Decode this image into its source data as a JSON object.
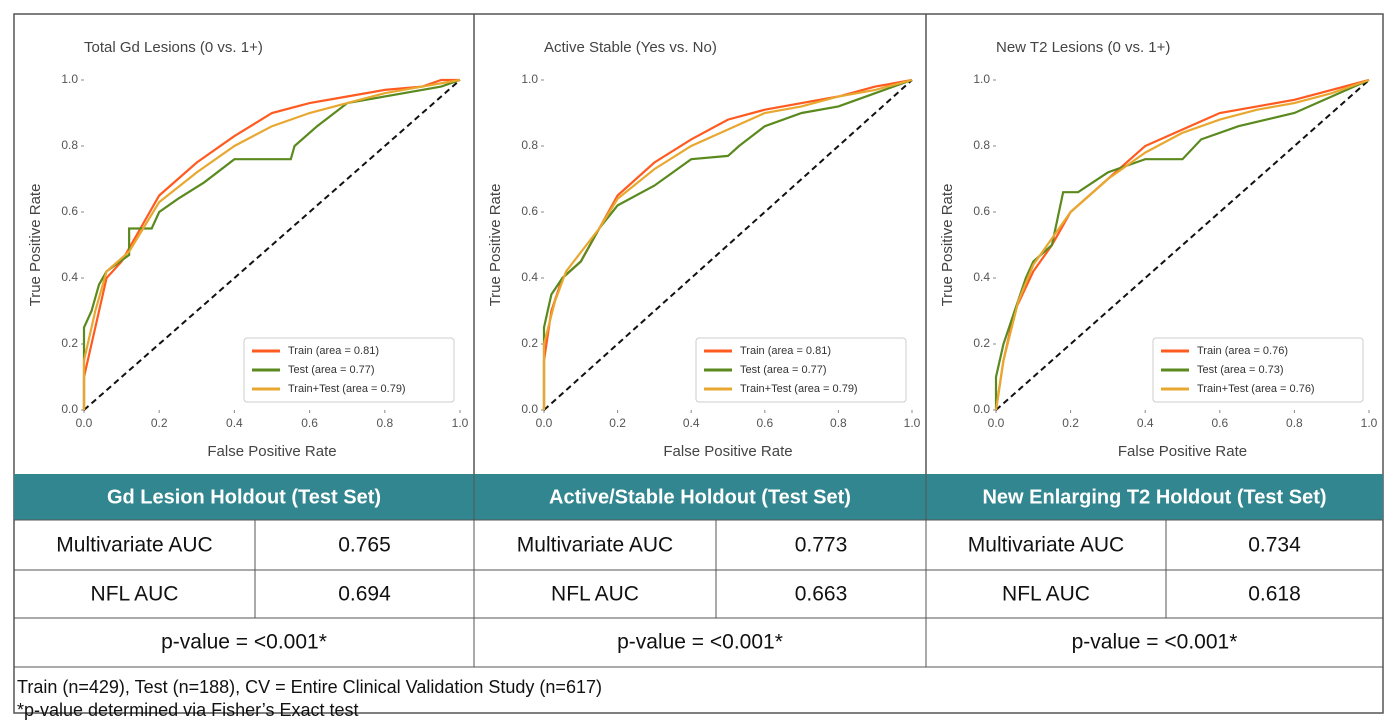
{
  "chart_data": [
    {
      "type": "line",
      "title": "Total Gd Lesions (0 vs. 1+)",
      "xlabel": "False Positive Rate",
      "ylabel": "True Positive Rate",
      "xlim": [
        0,
        1
      ],
      "ylim": [
        0,
        1
      ],
      "xticks": [
        {
          "value": 0,
          "label": "0.0"
        },
        0.2,
        0.4,
        0.6,
        0.8,
        {
          "value": 1,
          "label": "1.0"
        }
      ],
      "yticks": [
        {
          "value": 0,
          "label": "0.0"
        },
        0.2,
        0.4,
        0.6,
        0.8,
        {
          "value": 1,
          "label": "1.0"
        }
      ],
      "legend": "lower right",
      "series": [
        {
          "name": "Train (area = 0.81)",
          "color": "#ff5a1f",
          "x": [
            0,
            0,
            0.02,
            0.04,
            0.06,
            0.1,
            0.15,
            0.2,
            0.25,
            0.3,
            0.4,
            0.5,
            0.6,
            0.7,
            0.8,
            0.9,
            0.95,
            1
          ],
          "values": [
            0,
            0.1,
            0.2,
            0.3,
            0.4,
            0.45,
            0.55,
            0.65,
            0.7,
            0.75,
            0.83,
            0.9,
            0.93,
            0.95,
            0.97,
            0.98,
            1,
            1
          ]
        },
        {
          "name": "Test (area = 0.77)",
          "color": "#5a8a1e",
          "x": [
            0,
            0,
            0.02,
            0.04,
            0.06,
            0.12,
            0.12,
            0.18,
            0.2,
            0.25,
            0.32,
            0.4,
            0.55,
            0.56,
            0.62,
            0.7,
            0.85,
            0.95,
            1
          ],
          "values": [
            0,
            0.25,
            0.3,
            0.38,
            0.42,
            0.47,
            0.55,
            0.55,
            0.6,
            0.64,
            0.69,
            0.76,
            0.76,
            0.8,
            0.86,
            0.93,
            0.96,
            0.98,
            1
          ]
        },
        {
          "name": "Train+Test (area = 0.79)",
          "color": "#e8a830",
          "x": [
            0,
            0,
            0.03,
            0.06,
            0.12,
            0.2,
            0.3,
            0.4,
            0.5,
            0.6,
            0.7,
            0.8,
            0.9,
            1
          ],
          "values": [
            0,
            0.15,
            0.3,
            0.42,
            0.48,
            0.63,
            0.72,
            0.8,
            0.86,
            0.9,
            0.93,
            0.96,
            0.98,
            1
          ]
        }
      ]
    },
    {
      "type": "line",
      "title": "Active Stable (Yes vs. No)",
      "xlabel": "False Positive Rate",
      "ylabel": "True Positive Rate",
      "xlim": [
        0,
        1
      ],
      "ylim": [
        0,
        1
      ],
      "xticks": [
        {
          "value": 0,
          "label": "0.0"
        },
        0.2,
        0.4,
        0.6,
        0.8,
        {
          "value": 1,
          "label": "1.0"
        }
      ],
      "yticks": [
        {
          "value": 0,
          "label": "0.0"
        },
        0.2,
        0.4,
        0.6,
        0.8,
        {
          "value": 1,
          "label": "1.0"
        }
      ],
      "legend": "lower right",
      "series": [
        {
          "name": "Train (area = 0.81)",
          "color": "#ff5a1f",
          "x": [
            0,
            0,
            0.02,
            0.05,
            0.1,
            0.15,
            0.2,
            0.3,
            0.4,
            0.5,
            0.6,
            0.7,
            0.8,
            0.9,
            1
          ],
          "values": [
            0,
            0.15,
            0.3,
            0.4,
            0.45,
            0.55,
            0.65,
            0.75,
            0.82,
            0.88,
            0.91,
            0.93,
            0.95,
            0.98,
            1
          ]
        },
        {
          "name": "Test (area = 0.77)",
          "color": "#5a8a1e",
          "x": [
            0,
            0,
            0.02,
            0.05,
            0.1,
            0.15,
            0.2,
            0.3,
            0.4,
            0.5,
            0.53,
            0.6,
            0.7,
            0.8,
            0.9,
            1
          ],
          "values": [
            0,
            0.25,
            0.35,
            0.4,
            0.45,
            0.55,
            0.62,
            0.68,
            0.76,
            0.77,
            0.8,
            0.86,
            0.9,
            0.92,
            0.96,
            1
          ]
        },
        {
          "name": "Train+Test (area = 0.79)",
          "color": "#e8a830",
          "x": [
            0,
            0,
            0.03,
            0.06,
            0.15,
            0.2,
            0.3,
            0.4,
            0.5,
            0.6,
            0.7,
            0.8,
            0.9,
            1
          ],
          "values": [
            0,
            0.2,
            0.33,
            0.42,
            0.55,
            0.64,
            0.73,
            0.8,
            0.85,
            0.9,
            0.92,
            0.95,
            0.97,
            1
          ]
        }
      ]
    },
    {
      "type": "line",
      "title": "New T2 Lesions (0 vs. 1+)",
      "xlabel": "False Positive Rate",
      "ylabel": "True Positive Rate",
      "xlim": [
        0,
        1
      ],
      "ylim": [
        0,
        1
      ],
      "xticks": [
        {
          "value": 0,
          "label": "0.0"
        },
        0.2,
        0.4,
        0.6,
        0.8,
        {
          "value": 1,
          "label": "1.0"
        }
      ],
      "yticks": [
        {
          "value": 0,
          "label": "0.0"
        },
        0.2,
        0.4,
        0.6,
        0.8,
        {
          "value": 1,
          "label": "1.0"
        }
      ],
      "legend": "lower right",
      "series": [
        {
          "name": "Train (area = 0.76)",
          "color": "#ff5a1f",
          "x": [
            0,
            0.02,
            0.05,
            0.1,
            0.15,
            0.2,
            0.3,
            0.4,
            0.5,
            0.6,
            0.7,
            0.8,
            0.9,
            1
          ],
          "values": [
            0,
            0.15,
            0.3,
            0.42,
            0.5,
            0.6,
            0.7,
            0.8,
            0.85,
            0.9,
            0.92,
            0.94,
            0.97,
            1
          ]
        },
        {
          "name": "Test (area = 0.73)",
          "color": "#5a8a1e",
          "x": [
            0,
            0,
            0.02,
            0.05,
            0.08,
            0.1,
            0.15,
            0.18,
            0.22,
            0.3,
            0.4,
            0.5,
            0.55,
            0.65,
            0.8,
            0.9,
            1
          ],
          "values": [
            0,
            0.1,
            0.2,
            0.3,
            0.4,
            0.45,
            0.5,
            0.66,
            0.66,
            0.72,
            0.76,
            0.76,
            0.82,
            0.86,
            0.9,
            0.95,
            1
          ]
        },
        {
          "name": "Train+Test (area = 0.76)",
          "color": "#e8a830",
          "x": [
            0,
            0.02,
            0.06,
            0.1,
            0.2,
            0.3,
            0.4,
            0.5,
            0.6,
            0.7,
            0.8,
            0.9,
            1
          ],
          "values": [
            0,
            0.15,
            0.33,
            0.44,
            0.6,
            0.7,
            0.78,
            0.84,
            0.88,
            0.91,
            0.93,
            0.96,
            1
          ]
        }
      ]
    }
  ],
  "table": {
    "headers": [
      "Gd Lesion Holdout (Test Set)",
      "Active/Stable Holdout (Test Set)",
      "New Enlarging T2 Holdout (Test Set)"
    ],
    "rows": [
      [
        "Multivariate AUC",
        "0.765",
        "Multivariate AUC",
        "0.773",
        "Multivariate AUC",
        "0.734"
      ],
      [
        "NFL AUC",
        "0.694",
        "NFL AUC",
        "0.663",
        "NFL AUC",
        "0.618"
      ]
    ],
    "p_values": [
      "p-value = <0.001*",
      "p-value = <0.001*",
      "p-value = <0.001*"
    ],
    "footnotes": [
      "Train (n=429), Test (n=188), CV = Entire Clinical Validation Study (n=617)",
      "*p-value determined via Fisher’s Exact test"
    ]
  }
}
